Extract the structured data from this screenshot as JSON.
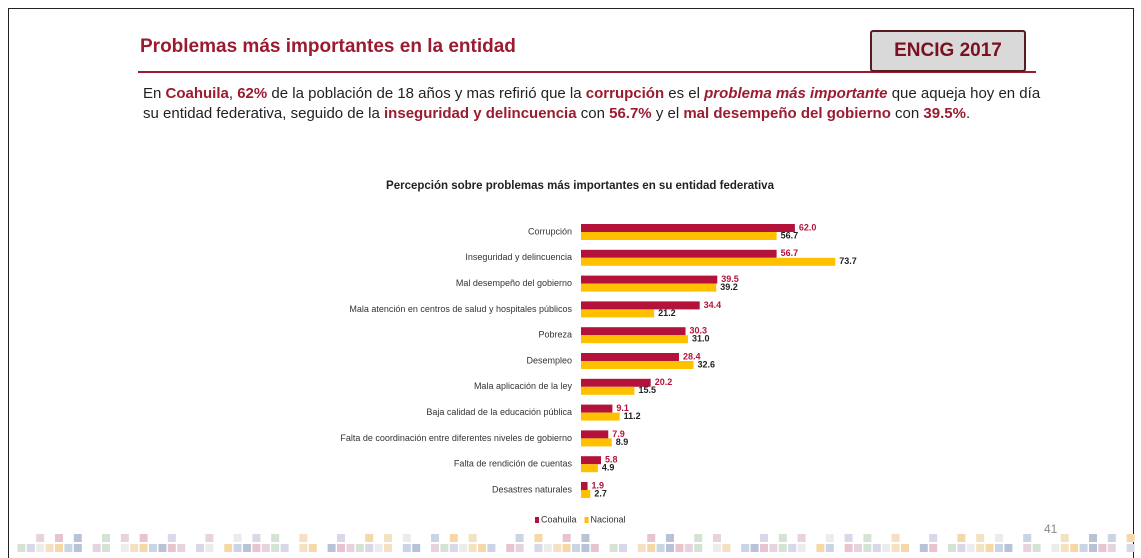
{
  "header": {
    "title": "Problemas más importantes en la entidad",
    "badge": "ENCIG 2017"
  },
  "paragraph": {
    "segments": [
      "En ",
      "Coahuila",
      ", ",
      "62%",
      " de la población de 18 años y mas refirió que la ",
      "corrupción",
      " es el ",
      "problema más importante",
      " que aqueja hoy en día su entidad federativa, seguido de la ",
      "inseguridad y delincuencia",
      " con ",
      "56.7%",
      " y el ",
      "mal desempeño del gobierno",
      " con ",
      "39.5%",
      "."
    ]
  },
  "page_number": "41",
  "chart_data": {
    "type": "bar",
    "orientation": "horizontal",
    "title": "Percepción sobre problemas más importantes en su entidad federativa",
    "categories": [
      "Corrupción",
      "Inseguridad y delincuencia",
      "Mal desempeño del gobierno",
      "Mala atención en centros de salud y hospitales públicos",
      "Pobreza",
      "Desempleo",
      "Mala aplicación de la ley",
      "Baja calidad de la educación pública",
      "Falta de coordinación entre diferentes niveles de gobierno",
      "Falta de rendición de cuentas",
      "Desastres naturales"
    ],
    "series": [
      {
        "name": "Coahuila",
        "color": "#b5123b",
        "values": [
          62.0,
          56.7,
          39.5,
          34.4,
          30.3,
          28.4,
          20.2,
          9.1,
          7.9,
          5.8,
          1.9
        ],
        "value_labels": [
          "62.0",
          "56.7",
          "39.5",
          "34.4",
          "30.3",
          "28.4",
          "20.2",
          "9.1",
          "7.9",
          "5.8",
          "1.9"
        ]
      },
      {
        "name": "Nacional",
        "color": "#ffc000",
        "values": [
          56.7,
          73.7,
          39.2,
          21.2,
          31.0,
          32.6,
          15.5,
          11.2,
          8.9,
          4.9,
          2.7
        ],
        "value_labels": [
          "56.7",
          "73.7",
          "39.2",
          "21.2",
          "31.0",
          "32.6",
          "15.5",
          "11.2",
          "8.9",
          "4.9",
          "2.7"
        ]
      }
    ],
    "legend": "bottom"
  }
}
